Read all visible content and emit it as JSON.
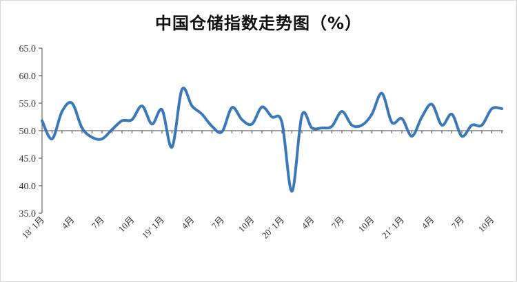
{
  "chart_data": {
    "type": "line",
    "title": "中国仓储指数走势图（%）",
    "xlabel": "",
    "ylabel": "",
    "ylim": [
      35,
      65
    ],
    "y_ticks": [
      "35.0",
      "40.0",
      "45.0",
      "50.0",
      "55.0",
      "60.0",
      "65.0"
    ],
    "grid": false,
    "legend": "none",
    "line_color": "#3b78b8",
    "x_tick_labels": [
      {
        "index": 0,
        "label": "18’ 1月"
      },
      {
        "index": 3,
        "label": "4月"
      },
      {
        "index": 6,
        "label": "7月"
      },
      {
        "index": 9,
        "label": "10月"
      },
      {
        "index": 12,
        "label": "19’ 1月"
      },
      {
        "index": 15,
        "label": "4月"
      },
      {
        "index": 18,
        "label": "7月"
      },
      {
        "index": 21,
        "label": "10月"
      },
      {
        "index": 24,
        "label": "20’ 1月"
      },
      {
        "index": 27,
        "label": "4月"
      },
      {
        "index": 30,
        "label": "7月"
      },
      {
        "index": 33,
        "label": "10月"
      },
      {
        "index": 36,
        "label": "21’ 1月"
      },
      {
        "index": 39,
        "label": "4月"
      },
      {
        "index": 42,
        "label": "7月"
      },
      {
        "index": 45,
        "label": "10月"
      }
    ],
    "series": [
      {
        "values": [
          51.8,
          48.5,
          53.5,
          55.0,
          50.5,
          48.8,
          48.5,
          50.2,
          51.8,
          52.0,
          54.5,
          51.2,
          53.8,
          47.0,
          57.5,
          54.5,
          53.0,
          50.8,
          49.8,
          54.2,
          52.0,
          51.2,
          54.3,
          52.5,
          51.5,
          39.0,
          52.8,
          50.5,
          50.5,
          50.8,
          53.5,
          51.0,
          51.0,
          53.0,
          56.8,
          51.5,
          52.2,
          49.0,
          52.5,
          54.8,
          51.0,
          53.0,
          49.0,
          51.0,
          51.0,
          54.0,
          54.0
        ]
      }
    ]
  }
}
